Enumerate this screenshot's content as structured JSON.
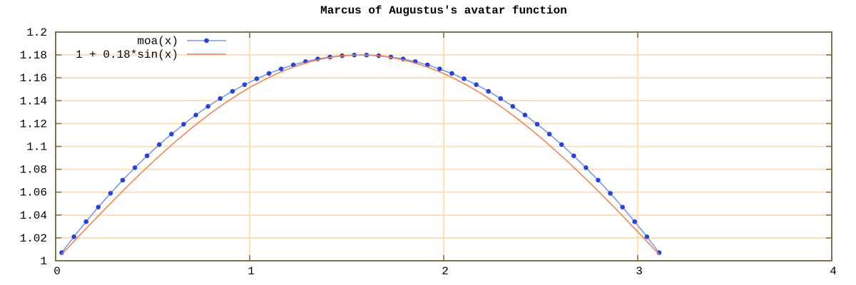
{
  "chart_data": {
    "type": "line",
    "title": "Marcus of Augustus's avatar function",
    "grid": true,
    "background": "#ffffff",
    "colors": {
      "grid": "#ffd9a3",
      "border": "#7a7258",
      "text": "#000000",
      "moa_point": "#2845d0",
      "moa_line": "#7e96e6",
      "sin_line": "#ee8558"
    },
    "x_axis": {
      "min": 0,
      "max": 4,
      "tick_values": [
        0,
        1,
        2,
        3,
        4
      ],
      "tick_labels": [
        "0",
        "1",
        "2",
        "3",
        "4"
      ]
    },
    "y_axis": {
      "min": 1,
      "max": 1.2,
      "tick_values": [
        1,
        1.02,
        1.04,
        1.06,
        1.08,
        1.1,
        1.12,
        1.14,
        1.16,
        1.18,
        1.2
      ],
      "tick_labels": [
        "1",
        "1.02",
        "1.04",
        "1.06",
        "1.08",
        "1.1",
        "1.12",
        "1.14",
        "1.16",
        "1.18",
        "1.2"
      ]
    },
    "legend": {
      "position": "top-left",
      "entries": [
        "moa(x)",
        "1 + 0.18*sin(x)"
      ]
    },
    "series": [
      {
        "name": "moa(x)",
        "style": "linespoints",
        "line_color": "#7e96e6",
        "point_color": "#2845d0",
        "x": [
          0.0314,
          0.0942,
          0.1571,
          0.2199,
          0.2827,
          0.3456,
          0.4084,
          0.4712,
          0.5341,
          0.5969,
          0.6597,
          0.7226,
          0.7854,
          0.8482,
          0.9111,
          0.9739,
          1.0367,
          1.0996,
          1.1624,
          1.2252,
          1.2881,
          1.3509,
          1.4137,
          1.4765,
          1.5394,
          1.6022,
          1.665,
          1.7279,
          1.7907,
          1.8535,
          1.9164,
          1.9792,
          2.042,
          2.1049,
          2.1677,
          2.2305,
          2.2934,
          2.3562,
          2.419,
          2.4819,
          2.5447,
          2.6075,
          2.6704,
          2.7332,
          2.796,
          2.8588,
          2.9217,
          2.9845,
          3.0473,
          3.1102
        ],
        "y": [
          1.0071,
          1.021,
          1.0342,
          1.0469,
          1.059,
          1.0705,
          1.0814,
          1.0918,
          1.1016,
          1.1108,
          1.1194,
          1.1275,
          1.135,
          1.1419,
          1.1482,
          1.154,
          1.1592,
          1.1638,
          1.1678,
          1.1713,
          1.1742,
          1.1765,
          1.1782,
          1.1793,
          1.1799,
          1.1799,
          1.1793,
          1.1782,
          1.1765,
          1.1742,
          1.1713,
          1.1678,
          1.1638,
          1.1592,
          1.154,
          1.1482,
          1.1419,
          1.135,
          1.1275,
          1.1194,
          1.1108,
          1.1016,
          1.0918,
          1.0814,
          1.0705,
          1.059,
          1.0469,
          1.0342,
          1.021,
          1.0071
        ]
      },
      {
        "name": "1 + 0.18*sin(x)",
        "style": "lines",
        "line_color": "#ee8558",
        "x": [
          0.0314,
          0.0628,
          0.1257,
          0.1885,
          0.2513,
          0.3142,
          0.377,
          0.4398,
          0.5027,
          0.5655,
          0.6283,
          0.6912,
          0.754,
          0.8168,
          0.8796,
          0.9425,
          1.0053,
          1.0681,
          1.131,
          1.1938,
          1.2566,
          1.3195,
          1.3823,
          1.4451,
          1.508,
          1.5708,
          1.6336,
          1.6965,
          1.7593,
          1.8221,
          1.885,
          1.9478,
          2.0106,
          2.0735,
          2.1363,
          2.1991,
          2.2619,
          2.3248,
          2.3876,
          2.4504,
          2.5133,
          2.5761,
          2.6389,
          2.7018,
          2.7646,
          2.8274,
          2.8903,
          2.9531,
          3.0159,
          3.0788,
          3.1102
        ],
        "y": [
          1.0057,
          1.0113,
          1.0226,
          1.0337,
          1.0448,
          1.0556,
          1.0663,
          1.0766,
          1.0867,
          1.0964,
          1.1058,
          1.1147,
          1.1232,
          1.1312,
          1.1387,
          1.1456,
          1.152,
          1.1577,
          1.1629,
          1.1674,
          1.1712,
          1.1743,
          1.1768,
          1.1786,
          1.1796,
          1.18,
          1.1796,
          1.1786,
          1.1768,
          1.1743,
          1.1712,
          1.1674,
          1.1629,
          1.1577,
          1.152,
          1.1456,
          1.1387,
          1.1312,
          1.1232,
          1.1147,
          1.1058,
          1.0964,
          1.0867,
          1.0766,
          1.0663,
          1.0556,
          1.0448,
          1.0337,
          1.0226,
          1.0113,
          1.0057
        ]
      }
    ]
  }
}
